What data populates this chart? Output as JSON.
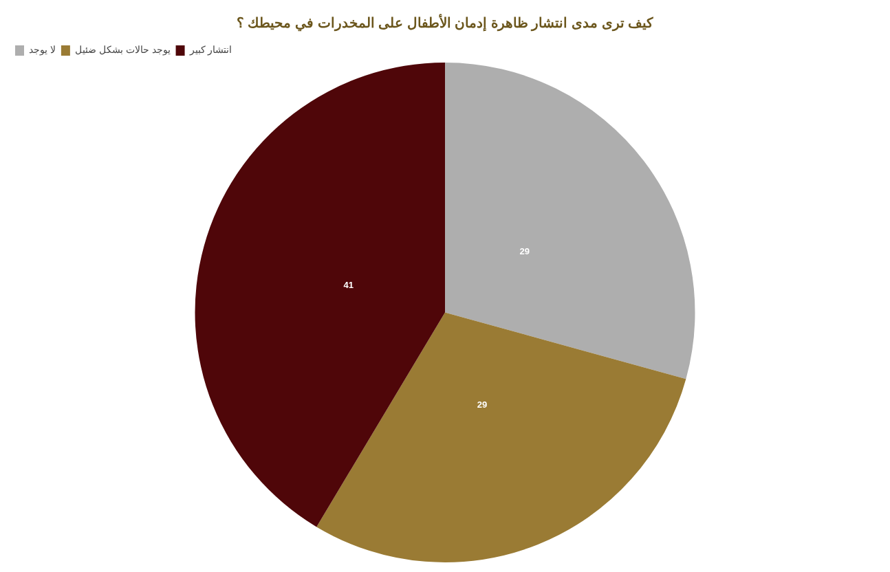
{
  "chart_data": {
    "type": "pie",
    "title": "كيف ترى مدى انتشار ظاهرة إدمان الأطفال على المخدرات في محيطك ؟",
    "categories": [
      "لا يوجد",
      "يوجد حالات بشكل ضئيل",
      "انتشار كبير"
    ],
    "values": [
      29,
      29,
      41
    ],
    "colors": [
      "#aeaeae",
      "#9a7b34",
      "#4f0609"
    ],
    "data_labels": true,
    "legend": "top left"
  }
}
